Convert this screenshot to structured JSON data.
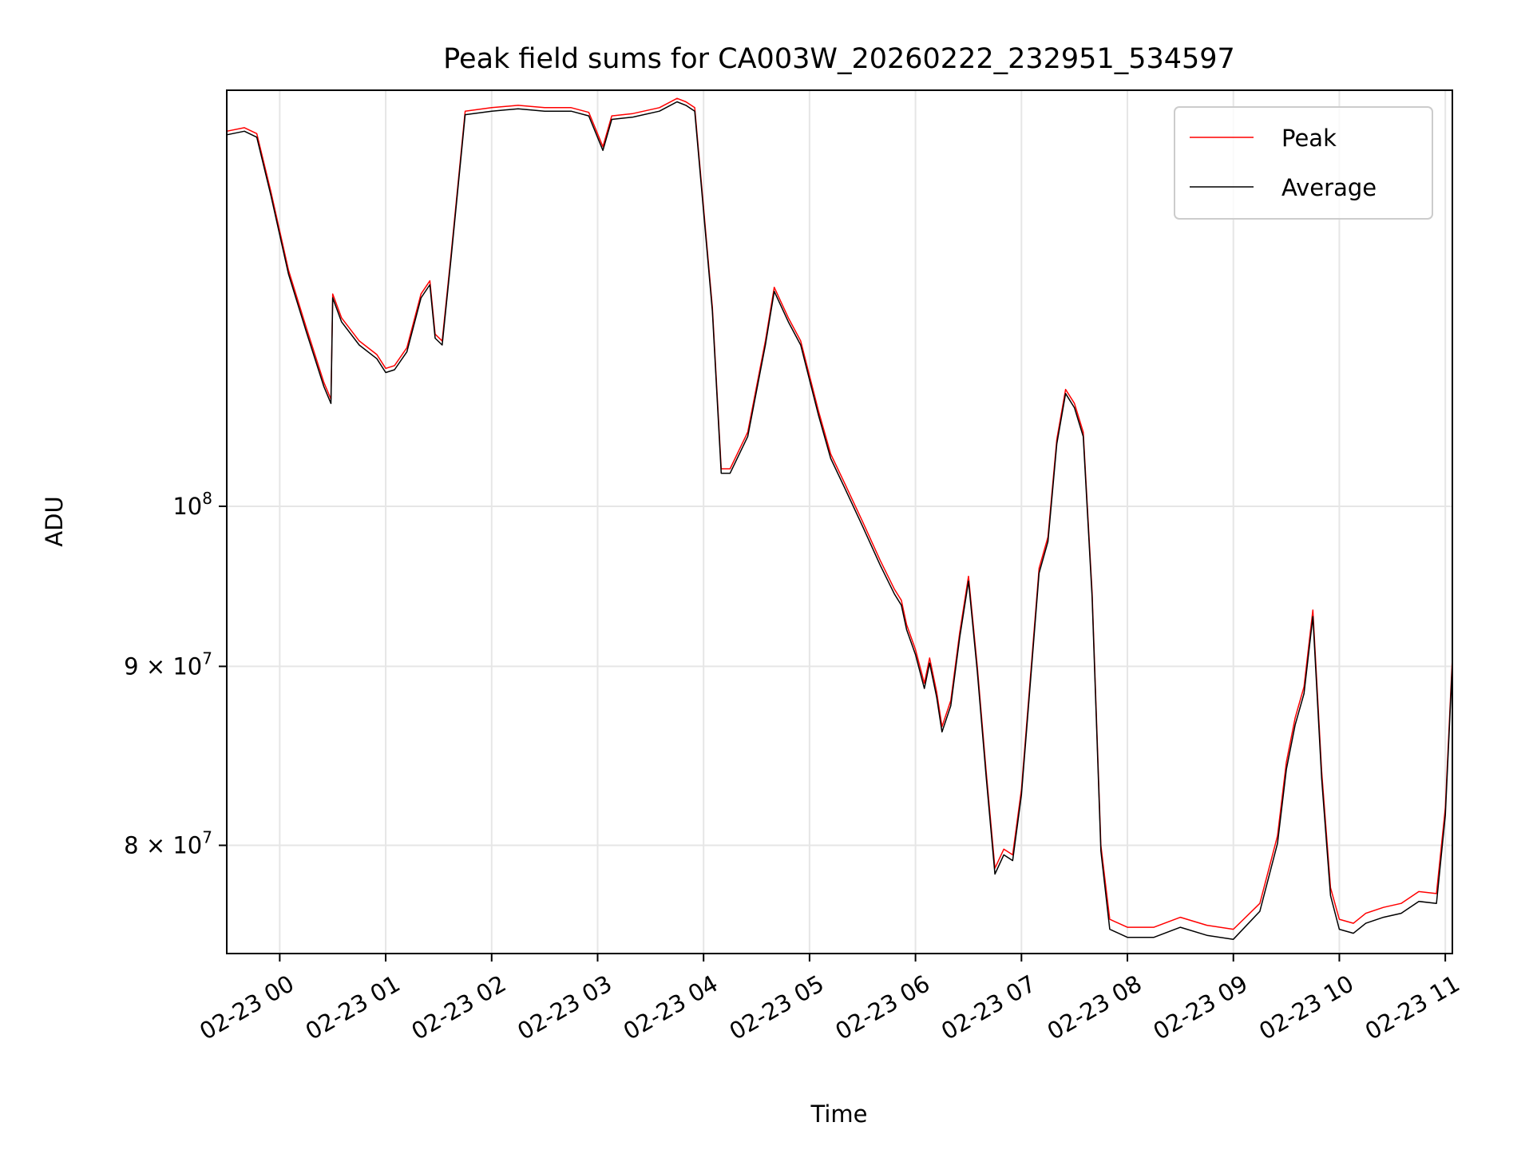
{
  "chart_data": {
    "type": "line",
    "title": "Peak field sums for CA003W_20260222_232951_534597",
    "xlabel": "Time",
    "ylabel": "ADU",
    "y_scale": "log",
    "grid": true,
    "legend_position": "top-right",
    "xlim": [
      "2026-02-22 23:30",
      "2026-02-23 11:04"
    ],
    "ylim": [
      74500000,
      131500000
    ],
    "x_ticks": [
      {
        "value": "2026-02-23 00:00",
        "label": "02-23 00"
      },
      {
        "value": "2026-02-23 01:00",
        "label": "02-23 01"
      },
      {
        "value": "2026-02-23 02:00",
        "label": "02-23 02"
      },
      {
        "value": "2026-02-23 03:00",
        "label": "02-23 03"
      },
      {
        "value": "2026-02-23 04:00",
        "label": "02-23 04"
      },
      {
        "value": "2026-02-23 05:00",
        "label": "02-23 05"
      },
      {
        "value": "2026-02-23 06:00",
        "label": "02-23 06"
      },
      {
        "value": "2026-02-23 07:00",
        "label": "02-23 07"
      },
      {
        "value": "2026-02-23 08:00",
        "label": "02-23 08"
      },
      {
        "value": "2026-02-23 09:00",
        "label": "02-23 09"
      },
      {
        "value": "2026-02-23 10:00",
        "label": "02-23 10"
      },
      {
        "value": "2026-02-23 11:00",
        "label": "02-23 11"
      }
    ],
    "y_ticks": [
      {
        "value": 80000000,
        "base": "8 × 10",
        "exp": "7"
      },
      {
        "value": 90000000,
        "base": "9 × 10",
        "exp": "7"
      },
      {
        "value": 100000000,
        "base": "10",
        "exp": "8"
      }
    ],
    "x": [
      "2026-02-22 23:30",
      "2026-02-22 23:40",
      "2026-02-22 23:47",
      "2026-02-22 23:55",
      "2026-02-23 00:05",
      "2026-02-23 00:15",
      "2026-02-23 00:25",
      "2026-02-23 00:29",
      "2026-02-23 00:30",
      "2026-02-23 00:35",
      "2026-02-23 00:45",
      "2026-02-23 00:55",
      "2026-02-23 01:00",
      "2026-02-23 01:05",
      "2026-02-23 01:12",
      "2026-02-23 01:20",
      "2026-02-23 01:25",
      "2026-02-23 01:28",
      "2026-02-23 01:32",
      "2026-02-23 01:37",
      "2026-02-23 01:45",
      "2026-02-23 02:00",
      "2026-02-23 02:15",
      "2026-02-23 02:30",
      "2026-02-23 02:45",
      "2026-02-23 02:55",
      "2026-02-23 03:03",
      "2026-02-23 03:08",
      "2026-02-23 03:20",
      "2026-02-23 03:35",
      "2026-02-23 03:45",
      "2026-02-23 03:50",
      "2026-02-23 03:55",
      "2026-02-23 04:05",
      "2026-02-23 04:10",
      "2026-02-23 04:15",
      "2026-02-23 04:25",
      "2026-02-23 04:35",
      "2026-02-23 04:40",
      "2026-02-23 04:48",
      "2026-02-23 04:55",
      "2026-02-23 05:05",
      "2026-02-23 05:12",
      "2026-02-23 05:20",
      "2026-02-23 05:30",
      "2026-02-23 05:40",
      "2026-02-23 05:48",
      "2026-02-23 05:52",
      "2026-02-23 05:55",
      "2026-02-23 06:00",
      "2026-02-23 06:05",
      "2026-02-23 06:08",
      "2026-02-23 06:12",
      "2026-02-23 06:15",
      "2026-02-23 06:20",
      "2026-02-23 06:25",
      "2026-02-23 06:30",
      "2026-02-23 06:35",
      "2026-02-23 06:40",
      "2026-02-23 06:45",
      "2026-02-23 06:50",
      "2026-02-23 06:55",
      "2026-02-23 07:00",
      "2026-02-23 07:10",
      "2026-02-23 07:15",
      "2026-02-23 07:20",
      "2026-02-23 07:25",
      "2026-02-23 07:30",
      "2026-02-23 07:35",
      "2026-02-23 07:40",
      "2026-02-23 07:45",
      "2026-02-23 07:50",
      "2026-02-23 08:00",
      "2026-02-23 08:15",
      "2026-02-23 08:30",
      "2026-02-23 08:45",
      "2026-02-23 09:00",
      "2026-02-23 09:15",
      "2026-02-23 09:25",
      "2026-02-23 09:30",
      "2026-02-23 09:35",
      "2026-02-23 09:40",
      "2026-02-23 09:45",
      "2026-02-23 09:50",
      "2026-02-23 09:55",
      "2026-02-23 10:00",
      "2026-02-23 10:08",
      "2026-02-23 10:15",
      "2026-02-23 10:25",
      "2026-02-23 10:35",
      "2026-02-23 10:45",
      "2026-02-23 10:55",
      "2026-02-23 11:00",
      "2026-02-23 11:04"
    ],
    "series": [
      {
        "name": "Peak",
        "color": "#ff0000",
        "values": [
          128000000,
          128300000,
          127800000,
          123000000,
          116800000,
          112500000,
          108500000,
          107300000,
          115000000,
          113200000,
          111500000,
          110500000,
          109500000,
          109700000,
          111000000,
          115000000,
          116000000,
          112000000,
          111500000,
          118000000,
          129700000,
          130000000,
          130200000,
          130000000,
          130000000,
          129600000,
          126700000,
          129300000,
          129500000,
          130000000,
          130800000,
          130500000,
          130000000,
          114000000,
          102500000,
          102500000,
          105000000,
          111500000,
          115500000,
          113200000,
          111500000,
          106500000,
          103500000,
          101500000,
          99000000,
          96500000,
          94700000,
          94000000,
          92500000,
          91000000,
          89000000,
          90500000,
          88500000,
          86500000,
          88000000,
          92000000,
          95500000,
          90000000,
          84000000,
          78800000,
          79800000,
          79500000,
          83000000,
          96000000,
          98000000,
          104500000,
          108000000,
          107000000,
          105000000,
          94500000,
          80000000,
          76200000,
          75800000,
          75800000,
          76300000,
          75900000,
          75700000,
          77000000,
          80500000,
          84500000,
          87000000,
          88800000,
          93400000,
          84000000,
          77800000,
          76200000,
          76000000,
          76500000,
          76800000,
          77000000,
          77600000,
          77500000,
          82000000,
          90500000
        ]
      },
      {
        "name": "Average",
        "color": "#000000",
        "values": [
          127700000,
          128000000,
          127500000,
          122700000,
          116500000,
          112200000,
          108200000,
          107000000,
          114700000,
          112900000,
          111200000,
          110200000,
          109200000,
          109400000,
          110700000,
          114700000,
          115700000,
          111700000,
          111200000,
          117700000,
          129400000,
          129700000,
          129900000,
          129700000,
          129700000,
          129300000,
          126400000,
          129000000,
          129200000,
          129700000,
          130500000,
          130200000,
          129700000,
          113700000,
          102200000,
          102200000,
          104700000,
          111200000,
          115200000,
          112900000,
          111200000,
          106200000,
          103200000,
          101200000,
          98700000,
          96200000,
          94400000,
          93700000,
          92200000,
          90700000,
          88700000,
          90200000,
          88200000,
          86200000,
          87700000,
          91700000,
          95200000,
          89700000,
          83700000,
          78500000,
          79500000,
          79200000,
          82700000,
          95700000,
          97700000,
          104200000,
          107700000,
          106700000,
          104700000,
          94200000,
          79700000,
          75700000,
          75300000,
          75300000,
          75800000,
          75400000,
          75200000,
          76600000,
          80100000,
          84100000,
          86600000,
          88400000,
          93000000,
          83600000,
          77400000,
          75700000,
          75500000,
          76000000,
          76300000,
          76500000,
          77100000,
          77000000,
          81600000,
          90200000
        ]
      }
    ]
  }
}
